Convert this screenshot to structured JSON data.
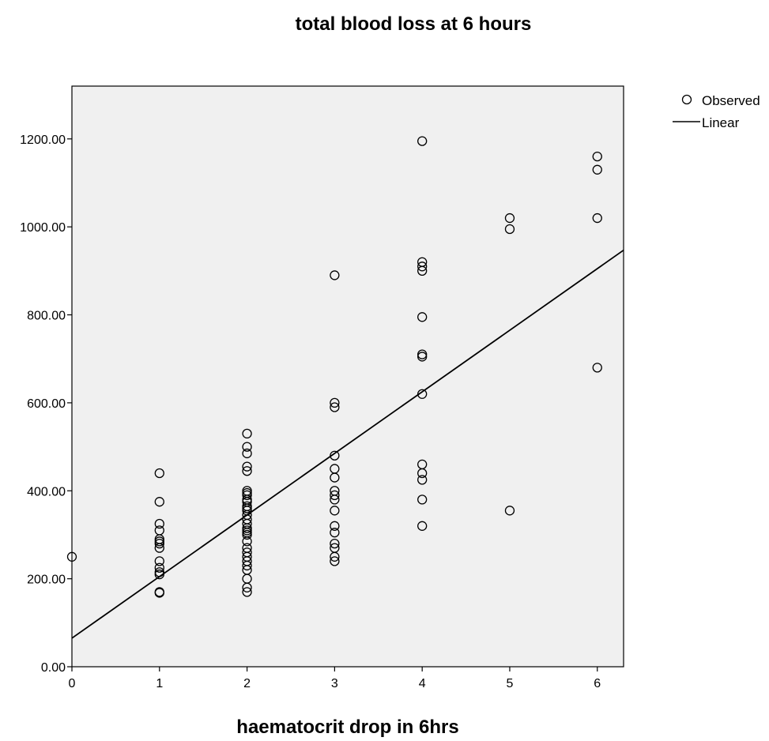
{
  "chart_data": {
    "type": "scatter",
    "title": "total blood loss at 6 hours",
    "xlabel": "haematocrit drop in 6hrs",
    "ylabel": "",
    "xlim": [
      0,
      6.3
    ],
    "ylim": [
      0,
      1320
    ],
    "x_ticks": [
      "0",
      "1",
      "2",
      "3",
      "4",
      "5",
      "6"
    ],
    "y_ticks": [
      "0.00",
      "200.00",
      "400.00",
      "600.00",
      "800.00",
      "1000.00",
      "1200.00"
    ],
    "grid": false,
    "legend_position": "right",
    "series": [
      {
        "name": "Observed",
        "kind": "points",
        "points": [
          [
            0,
            250
          ],
          [
            1,
            440
          ],
          [
            1,
            375
          ],
          [
            1,
            325
          ],
          [
            1,
            310
          ],
          [
            1,
            290
          ],
          [
            1,
            285
          ],
          [
            1,
            280
          ],
          [
            1,
            270
          ],
          [
            1,
            240
          ],
          [
            1,
            225
          ],
          [
            1,
            215
          ],
          [
            1,
            210
          ],
          [
            1,
            170
          ],
          [
            1,
            168
          ],
          [
            2,
            530
          ],
          [
            2,
            500
          ],
          [
            2,
            485
          ],
          [
            2,
            455
          ],
          [
            2,
            445
          ],
          [
            2,
            400
          ],
          [
            2,
            395
          ],
          [
            2,
            390
          ],
          [
            2,
            380
          ],
          [
            2,
            375
          ],
          [
            2,
            365
          ],
          [
            2,
            360
          ],
          [
            2,
            355
          ],
          [
            2,
            345
          ],
          [
            2,
            335
          ],
          [
            2,
            325
          ],
          [
            2,
            315
          ],
          [
            2,
            310
          ],
          [
            2,
            305
          ],
          [
            2,
            300
          ],
          [
            2,
            285
          ],
          [
            2,
            270
          ],
          [
            2,
            260
          ],
          [
            2,
            250
          ],
          [
            2,
            240
          ],
          [
            2,
            230
          ],
          [
            2,
            220
          ],
          [
            2,
            200
          ],
          [
            2,
            180
          ],
          [
            2,
            170
          ],
          [
            3,
            890
          ],
          [
            3,
            600
          ],
          [
            3,
            590
          ],
          [
            3,
            480
          ],
          [
            3,
            450
          ],
          [
            3,
            430
          ],
          [
            3,
            400
          ],
          [
            3,
            390
          ],
          [
            3,
            380
          ],
          [
            3,
            355
          ],
          [
            3,
            320
          ],
          [
            3,
            305
          ],
          [
            3,
            280
          ],
          [
            3,
            270
          ],
          [
            3,
            250
          ],
          [
            3,
            240
          ],
          [
            4,
            1195
          ],
          [
            4,
            920
          ],
          [
            4,
            910
          ],
          [
            4,
            900
          ],
          [
            4,
            795
          ],
          [
            4,
            710
          ],
          [
            4,
            705
          ],
          [
            4,
            620
          ],
          [
            4,
            460
          ],
          [
            4,
            440
          ],
          [
            4,
            425
          ],
          [
            4,
            380
          ],
          [
            4,
            320
          ],
          [
            5,
            1020
          ],
          [
            5,
            995
          ],
          [
            5,
            355
          ],
          [
            6,
            1160
          ],
          [
            6,
            1130
          ],
          [
            6,
            1020
          ],
          [
            6,
            680
          ]
        ]
      },
      {
        "name": "Linear",
        "kind": "line",
        "intercept": 65,
        "slope": 140
      }
    ],
    "colors": {
      "plot_background": "#f0f0f0",
      "marker": "#000000",
      "line": "#000000"
    }
  }
}
